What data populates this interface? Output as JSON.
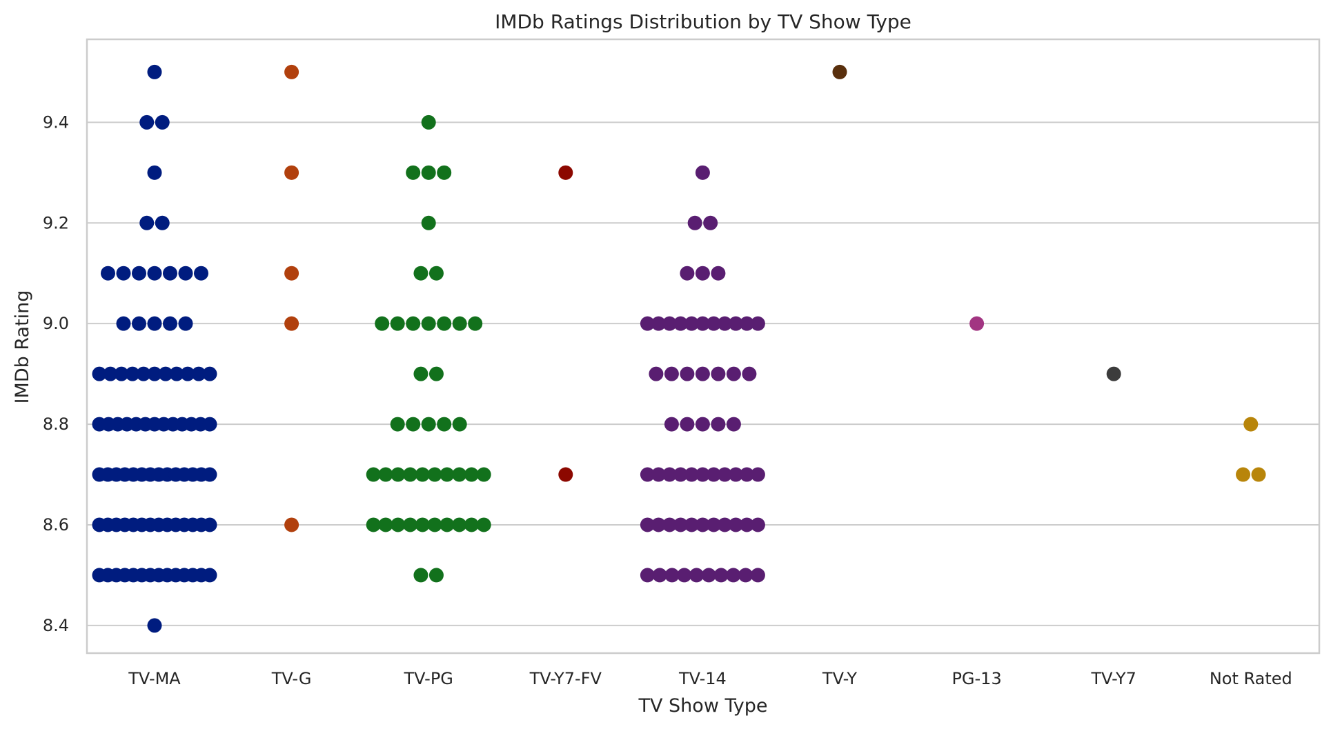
{
  "chart_data": {
    "type": "scatter",
    "subtype": "swarm",
    "title": "IMDb Ratings Distribution by TV Show Type",
    "xlabel": "TV Show Type",
    "ylabel": "IMDb Rating",
    "ylim": [
      8.345,
      9.565
    ],
    "yticks": [
      "8.4",
      "8.6",
      "8.8",
      "9.0",
      "9.2",
      "9.4"
    ],
    "grid": "horizontal",
    "legend": "none",
    "categories": [
      "TV-MA",
      "TV-G",
      "TV-PG",
      "TV-Y7-FV",
      "TV-14",
      "TV-Y",
      "PG-13",
      "TV-Y7",
      "Not Rated"
    ],
    "colors": [
      "#001c7f",
      "#b1400d",
      "#12711c",
      "#8c0800",
      "#591e71",
      "#592f0d",
      "#a23582",
      "#3c3c3c",
      "#b8850a"
    ],
    "series": [
      {
        "category": "TV-MA",
        "ratings": [
          8.4,
          8.5,
          8.5,
          8.5,
          8.5,
          8.5,
          8.5,
          8.5,
          8.5,
          8.5,
          8.5,
          8.5,
          8.5,
          8.5,
          8.5,
          8.6,
          8.6,
          8.6,
          8.6,
          8.6,
          8.6,
          8.6,
          8.6,
          8.6,
          8.6,
          8.6,
          8.6,
          8.6,
          8.6,
          8.7,
          8.7,
          8.7,
          8.7,
          8.7,
          8.7,
          8.7,
          8.7,
          8.7,
          8.7,
          8.7,
          8.7,
          8.7,
          8.7,
          8.8,
          8.8,
          8.8,
          8.8,
          8.8,
          8.8,
          8.8,
          8.8,
          8.8,
          8.8,
          8.8,
          8.8,
          8.8,
          8.9,
          8.9,
          8.9,
          8.9,
          8.9,
          8.9,
          8.9,
          8.9,
          8.9,
          8.9,
          8.9,
          9.0,
          9.0,
          9.0,
          9.0,
          9.0,
          9.1,
          9.1,
          9.1,
          9.1,
          9.1,
          9.1,
          9.1,
          9.2,
          9.2,
          9.3,
          9.4,
          9.4,
          9.5
        ]
      },
      {
        "category": "TV-G",
        "ratings": [
          8.6,
          9.0,
          9.1,
          9.3,
          9.5
        ]
      },
      {
        "category": "TV-PG",
        "ratings": [
          8.5,
          8.5,
          8.6,
          8.6,
          8.6,
          8.6,
          8.6,
          8.6,
          8.6,
          8.6,
          8.6,
          8.6,
          8.7,
          8.7,
          8.7,
          8.7,
          8.7,
          8.7,
          8.7,
          8.7,
          8.7,
          8.7,
          8.8,
          8.8,
          8.8,
          8.8,
          8.8,
          8.9,
          8.9,
          9.0,
          9.0,
          9.0,
          9.0,
          9.0,
          9.0,
          9.0,
          9.1,
          9.1,
          9.2,
          9.3,
          9.3,
          9.3,
          9.4
        ]
      },
      {
        "category": "TV-Y7-FV",
        "ratings": [
          8.7,
          9.3
        ]
      },
      {
        "category": "TV-14",
        "ratings": [
          8.5,
          8.5,
          8.5,
          8.5,
          8.5,
          8.5,
          8.5,
          8.5,
          8.5,
          8.5,
          8.6,
          8.6,
          8.6,
          8.6,
          8.6,
          8.6,
          8.6,
          8.6,
          8.6,
          8.6,
          8.6,
          8.7,
          8.7,
          8.7,
          8.7,
          8.7,
          8.7,
          8.7,
          8.7,
          8.7,
          8.7,
          8.7,
          8.8,
          8.8,
          8.8,
          8.8,
          8.8,
          8.9,
          8.9,
          8.9,
          8.9,
          8.9,
          8.9,
          8.9,
          9.0,
          9.0,
          9.0,
          9.0,
          9.0,
          9.0,
          9.0,
          9.0,
          9.0,
          9.0,
          9.0,
          9.1,
          9.1,
          9.1,
          9.2,
          9.2,
          9.3
        ]
      },
      {
        "category": "TV-Y",
        "ratings": [
          9.5
        ]
      },
      {
        "category": "PG-13",
        "ratings": [
          9.0
        ]
      },
      {
        "category": "TV-Y7",
        "ratings": [
          8.9
        ]
      },
      {
        "category": "Not Rated",
        "ratings": [
          8.7,
          8.7,
          8.8
        ]
      }
    ]
  }
}
